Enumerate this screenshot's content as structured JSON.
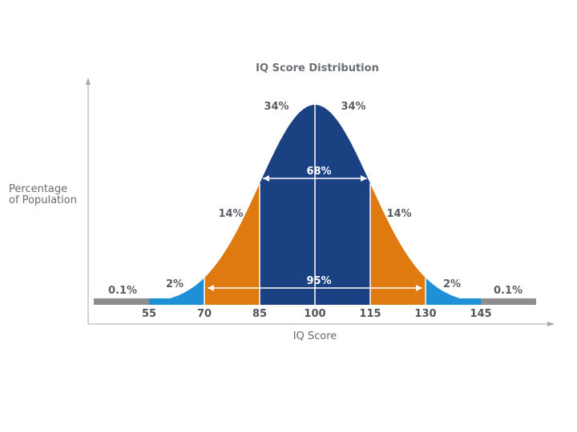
{
  "chart_data": {
    "type": "area",
    "title": "IQ Score Distribution",
    "xlabel": "IQ Score",
    "ylabel": [
      "Percentage",
      "of Population"
    ],
    "mean": 100,
    "sd": 15,
    "xlim": [
      40,
      160
    ],
    "ticks": [
      55,
      70,
      85,
      100,
      115,
      130,
      145
    ],
    "bands": [
      {
        "from": 40,
        "to": 55,
        "percent": "0.1%",
        "color": "#8e8e8e"
      },
      {
        "from": 55,
        "to": 70,
        "percent": "2%",
        "color": "#1f8fd6"
      },
      {
        "from": 70,
        "to": 85,
        "percent": "14%",
        "color": "#de7a10"
      },
      {
        "from": 85,
        "to": 100,
        "percent": "34%",
        "color": "#1a4283"
      },
      {
        "from": 100,
        "to": 115,
        "percent": "34%",
        "color": "#1a4283"
      },
      {
        "from": 115,
        "to": 130,
        "percent": "14%",
        "color": "#de7a10"
      },
      {
        "from": 130,
        "to": 145,
        "percent": "2%",
        "color": "#1f8fd6"
      },
      {
        "from": 145,
        "to": 160,
        "percent": "0.1%",
        "color": "#8e8e8e"
      }
    ],
    "ranges": [
      {
        "from": 85,
        "to": 115,
        "label": "68%"
      },
      {
        "from": 70,
        "to": 130,
        "label": "95%"
      }
    ]
  }
}
